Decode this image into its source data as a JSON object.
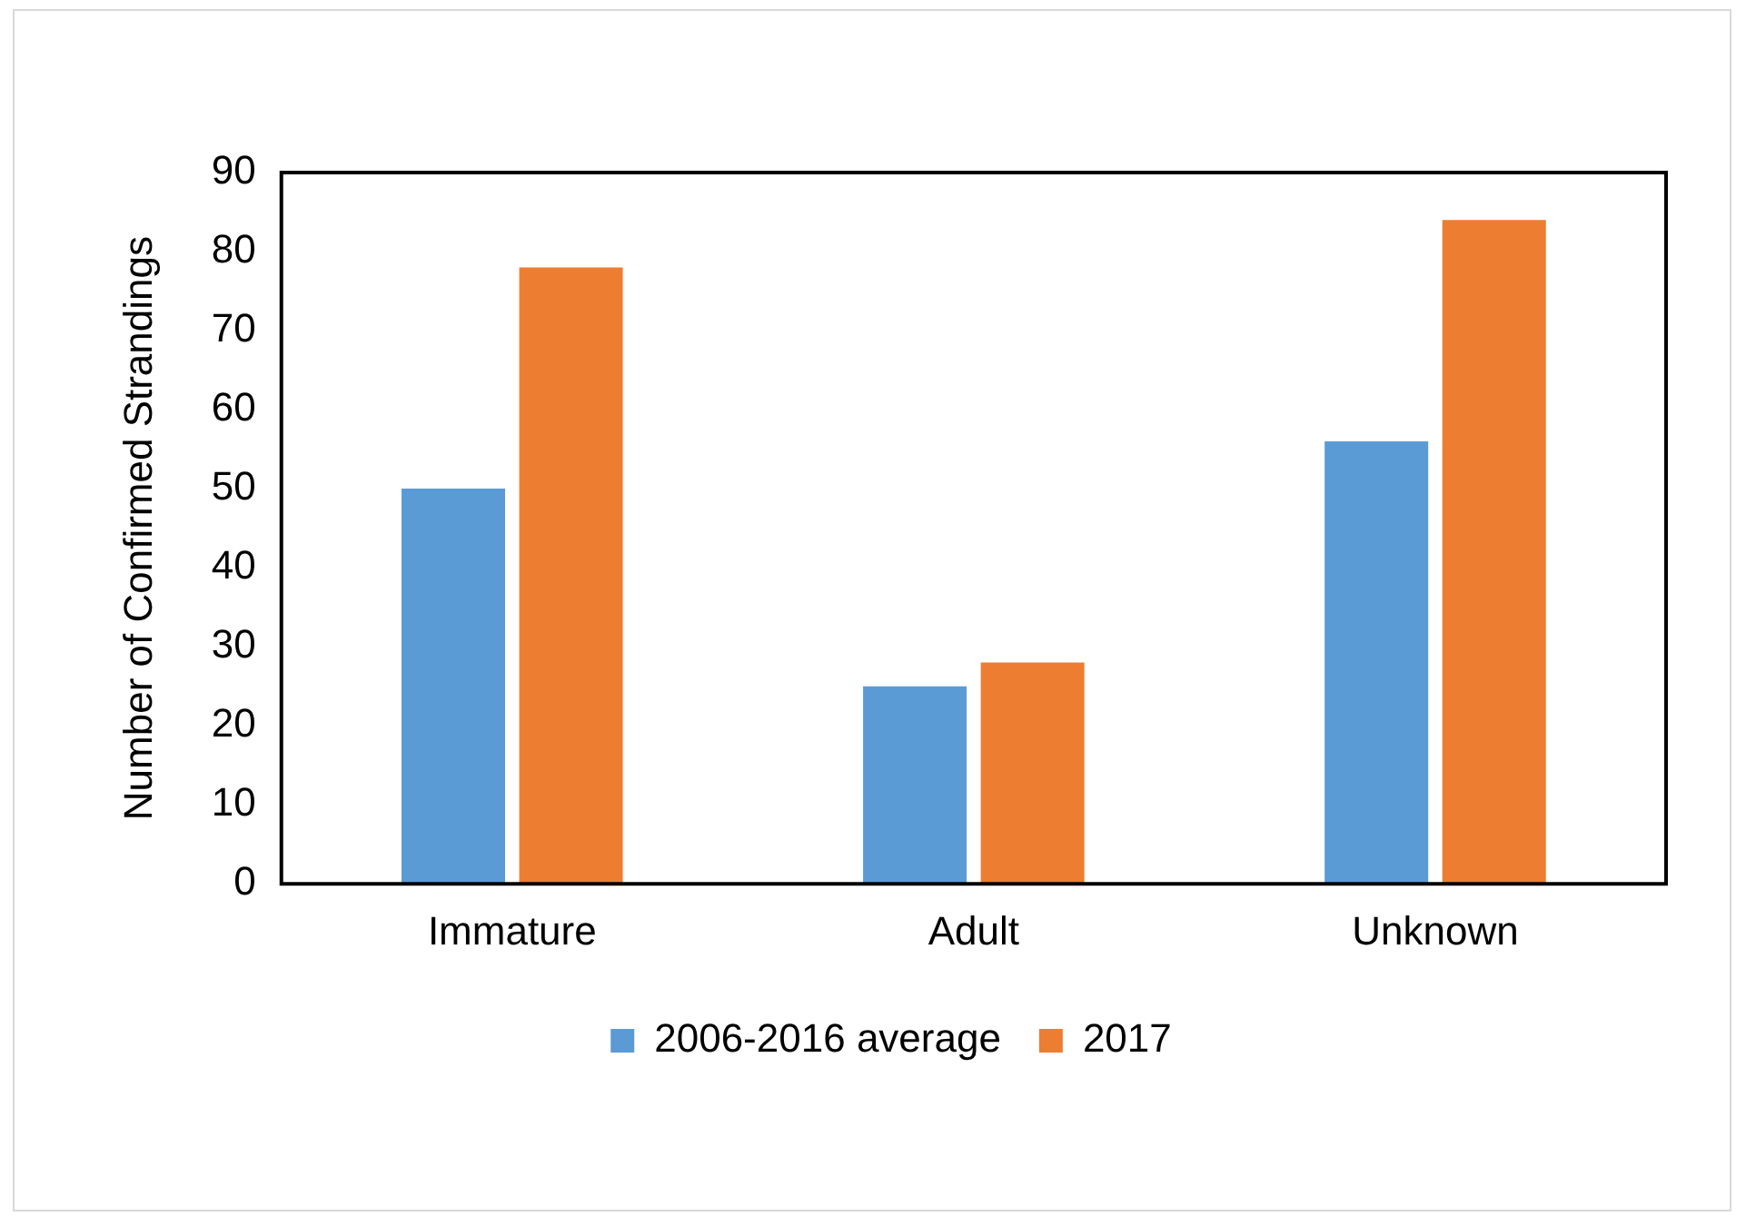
{
  "chart_data": {
    "type": "bar",
    "ylabel": "Number of Confirmed Strandings",
    "categories": [
      "Immature",
      "Adult",
      "Unknown"
    ],
    "series": [
      {
        "name": "2006-2016 average",
        "color": "#5b9bd5",
        "values": [
          50,
          25,
          56
        ]
      },
      {
        "name": "2017",
        "color": "#ed7d31",
        "values": [
          78,
          28,
          84
        ]
      }
    ],
    "ylim": [
      0,
      90
    ],
    "yticks": [
      0,
      10,
      20,
      30,
      40,
      50,
      60,
      70,
      80,
      90
    ],
    "grid": false,
    "legend": "bottom"
  }
}
